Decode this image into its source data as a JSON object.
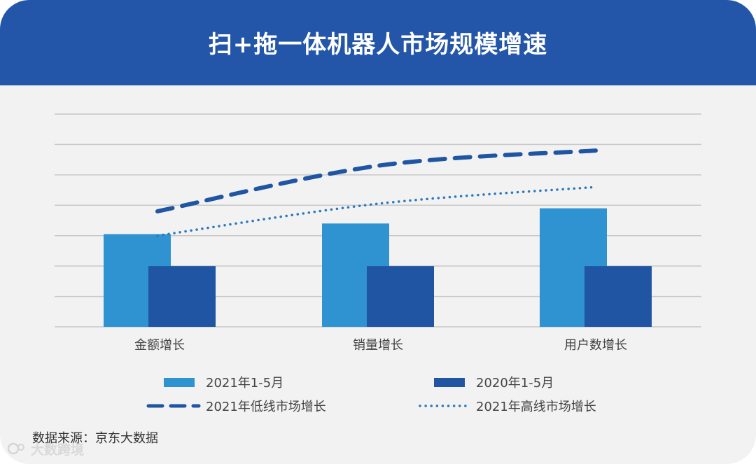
{
  "title": "扫+拖一体机器人市场规模增速",
  "colors": {
    "header_bg": "#2356a8",
    "bar_2021": "#2f93d1",
    "bar_2020": "#1f55a3",
    "line_low": "#1f55a3",
    "line_high": "#2a79bd",
    "grid": "#c8c8c8"
  },
  "chart_data": {
    "type": "bar",
    "title": "扫+拖一体机器人市场规模增速",
    "categories": [
      "金额增长",
      "销量增长",
      "用户数增长"
    ],
    "ylim": [
      0,
      7
    ],
    "grid": true,
    "y_tick_labels_shown": false,
    "series": [
      {
        "name": "2021年1-5月",
        "kind": "bar",
        "values": [
          3.05,
          3.4,
          3.9
        ]
      },
      {
        "name": "2020年1-5月",
        "kind": "bar",
        "values": [
          2.0,
          2.0,
          2.0
        ]
      },
      {
        "name": "2021年低线市场增长",
        "kind": "line",
        "style": "dashed",
        "values": [
          3.8,
          5.3,
          5.8
        ]
      },
      {
        "name": "2021年高线市场增长",
        "kind": "line",
        "style": "dotted",
        "values": [
          3.0,
          4.05,
          4.6
        ]
      }
    ],
    "legend_position": "bottom"
  },
  "source_text": "数据来源：京东大数据",
  "watermark_text": "大数跨境"
}
